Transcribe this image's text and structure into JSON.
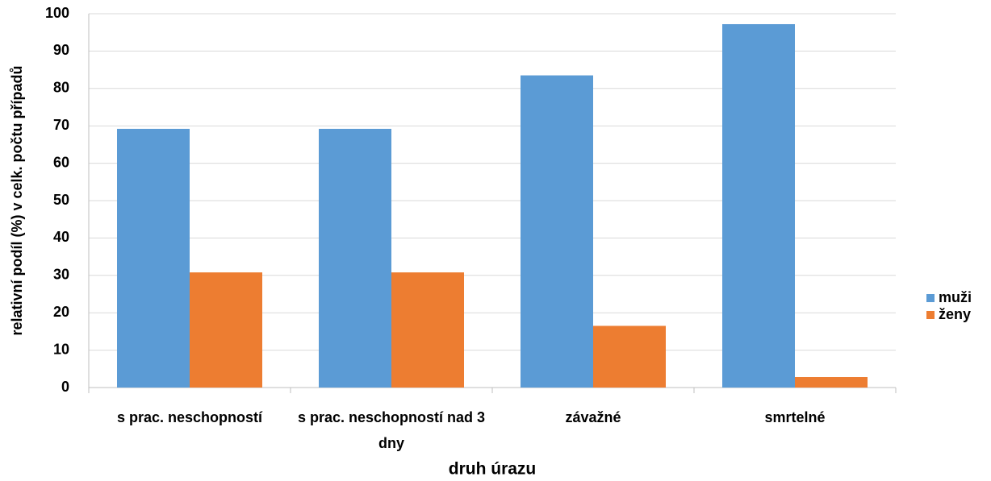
{
  "chart_data": {
    "type": "bar",
    "categories": [
      "s prac. neschopností",
      "s prac. neschopností nad 3 dny",
      "závažné",
      "smrtelné"
    ],
    "series": [
      {
        "name": "muži",
        "color": "#5b9bd5",
        "values": [
          69.2,
          69.2,
          83.5,
          97.2
        ]
      },
      {
        "name": "ženy",
        "color": "#ed7d31",
        "values": [
          30.8,
          30.8,
          16.5,
          2.8
        ]
      }
    ],
    "ylim": [
      0,
      100
    ],
    "yticks": [
      0,
      10,
      20,
      30,
      40,
      50,
      60,
      70,
      80,
      90,
      100
    ],
    "grid": true,
    "xlabel": "druh úrazu",
    "ylabel": "relativní podíl (%) v celk. počtu případů",
    "legend": "right"
  }
}
